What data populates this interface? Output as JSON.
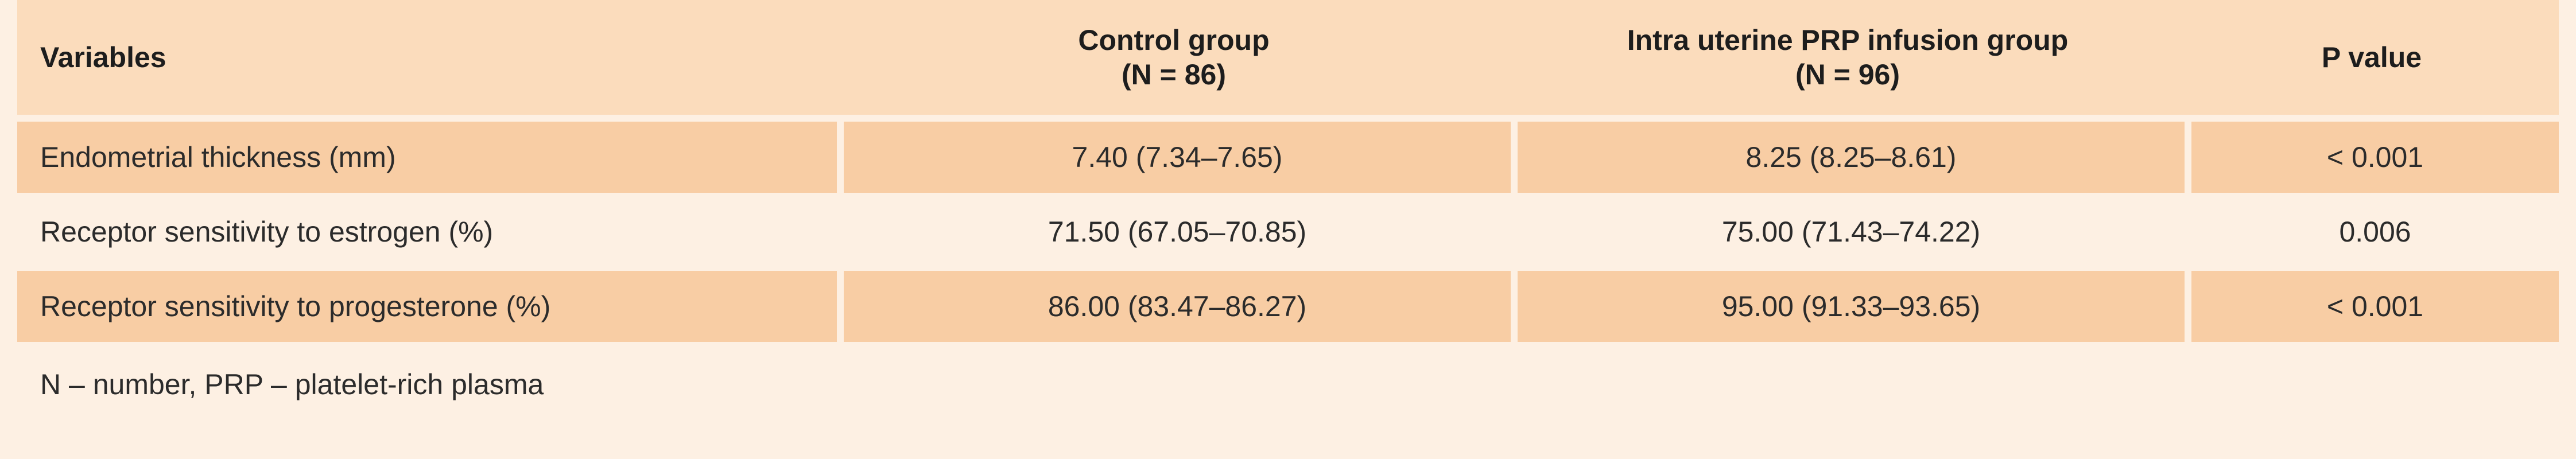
{
  "table": {
    "headers": {
      "variables": "Variables",
      "control_line1": "Control group",
      "control_line2": "(N = 86)",
      "prp_line1": "Intra uterine PRP infusion group",
      "prp_line2": "(N = 96)",
      "pvalue": "P value"
    },
    "rows": [
      {
        "variable": "Endometrial thickness (mm)",
        "control": "7.40 (7.34–7.65)",
        "prp": "8.25 (8.25–8.61)",
        "pvalue": "< 0.001"
      },
      {
        "variable": "Receptor sensitivity to estrogen (%)",
        "control": "71.50 (67.05–70.85)",
        "prp": "75.00 (71.43–74.22)",
        "pvalue": "0.006"
      },
      {
        "variable": "Receptor sensitivity to progesterone (%)",
        "control": "86.00 (83.47–86.27)",
        "prp": "95.00 (91.33–93.65)",
        "pvalue": "< 0.001"
      }
    ],
    "footnote": "N – number, PRP – platelet-rich plasma"
  },
  "colors": {
    "background": "#fdf0e3",
    "header_bg": "#fbdcbc",
    "shaded_row": "#f8cda4"
  }
}
